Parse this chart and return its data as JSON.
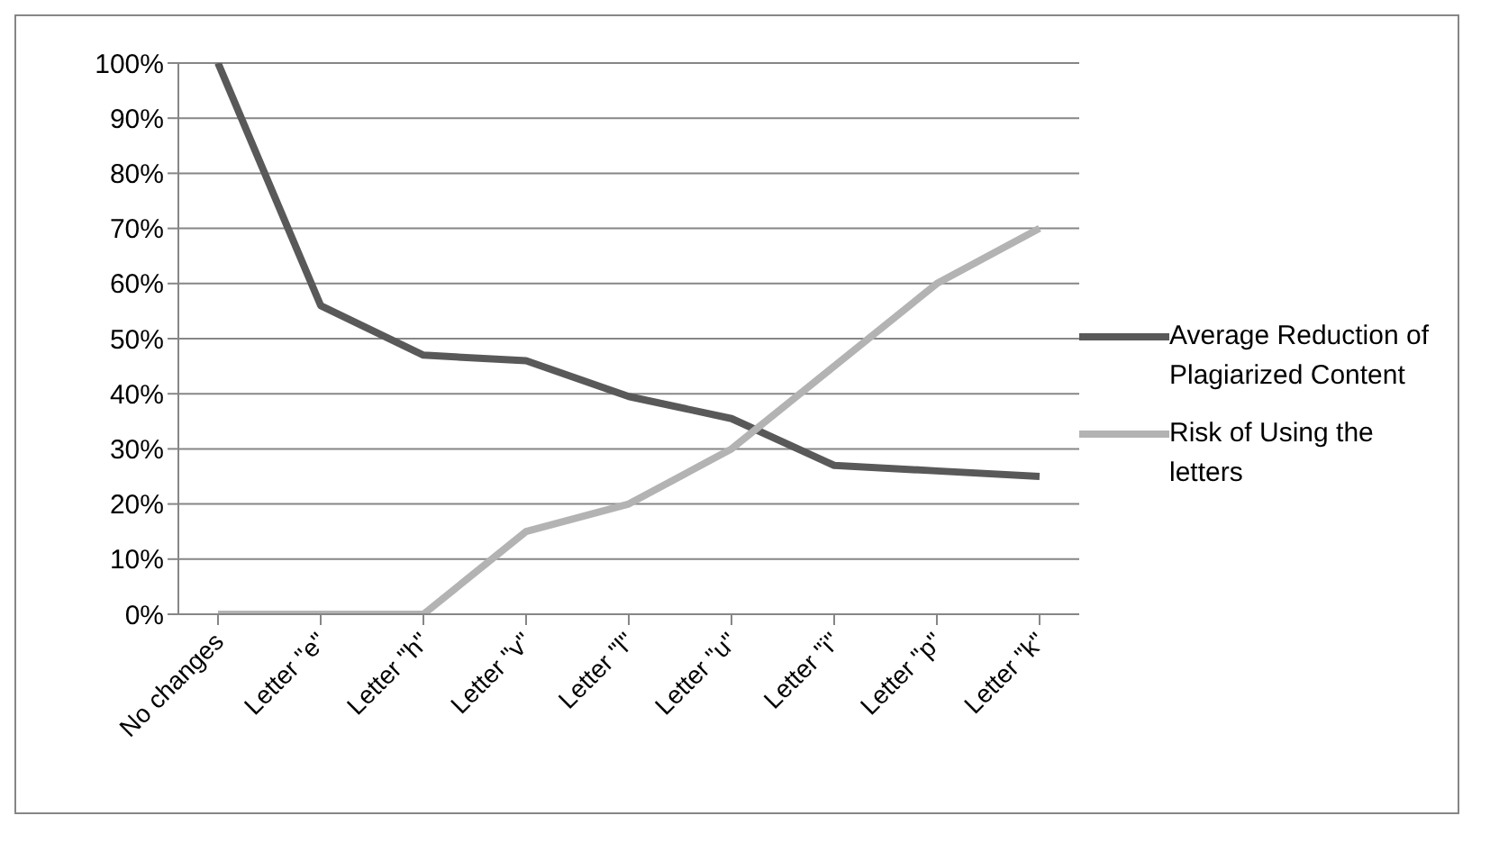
{
  "chart_data": {
    "type": "line",
    "categories": [
      "No changes",
      "Letter \"e\"",
      "Letter \"h\"",
      "Letter \"v\"",
      "Letter \"l\"",
      "Letter \"u\"",
      "Letter \"i\"",
      "Letter \"p\"",
      "Letter \"k\""
    ],
    "series": [
      {
        "name": "Average Reduction of Plagiarized Content",
        "color": "#595959",
        "values": [
          100,
          56,
          47,
          46,
          39.5,
          35.5,
          27,
          26,
          25
        ]
      },
      {
        "name": "Risk of Using the letters",
        "color": "#b3b3b3",
        "values": [
          0,
          0,
          0,
          15,
          20,
          30,
          45,
          60,
          70
        ]
      }
    ],
    "ylim": [
      0,
      100
    ],
    "yticks": [
      {
        "value": 0,
        "label": "0%"
      },
      {
        "value": 10,
        "label": "10%"
      },
      {
        "value": 20,
        "label": "20%"
      },
      {
        "value": 30,
        "label": "30%"
      },
      {
        "value": 40,
        "label": "40%"
      },
      {
        "value": 50,
        "label": "50%"
      },
      {
        "value": 60,
        "label": "60%"
      },
      {
        "value": 70,
        "label": "70%"
      },
      {
        "value": 80,
        "label": "80%"
      },
      {
        "value": 90,
        "label": "90%"
      },
      {
        "value": 100,
        "label": "100%"
      }
    ],
    "grid": "y",
    "legend": "right",
    "marker": "none",
    "line_style": "solid"
  }
}
